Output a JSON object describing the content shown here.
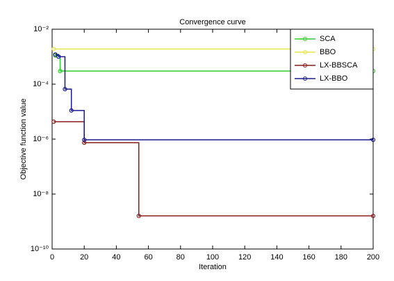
{
  "chart_data": {
    "type": "line",
    "drawstyle": "steps-post",
    "title": "Convergence curve",
    "x_label": "Iteration",
    "y_label": "Objective function value",
    "yscale": "log",
    "grid": false,
    "legend": "upper right",
    "xlim": [
      0,
      200
    ],
    "xticks": [
      0,
      20,
      40,
      60,
      80,
      100,
      120,
      140,
      160,
      180,
      200
    ],
    "ylim": [
      1e-10,
      0.01
    ],
    "yticks": [
      {
        "value": 0.01,
        "label": "10⁻²"
      },
      {
        "value": 0.0001,
        "label": "10⁻⁴"
      },
      {
        "value": 1e-06,
        "label": "10⁻⁶"
      },
      {
        "value": 1e-08,
        "label": "10⁻⁸"
      },
      {
        "value": 1e-10,
        "label": "10⁻¹⁰"
      }
    ],
    "series": [
      {
        "name": "SCA",
        "color": "#2ecc2e",
        "x": [
          2,
          5,
          200
        ],
        "values": [
          0.0011,
          0.0003,
          0.0003
        ]
      },
      {
        "name": "BBO",
        "color": "#e6e64a",
        "x": [
          1,
          200
        ],
        "values": [
          0.0019,
          0.0019
        ]
      },
      {
        "name": "LX-BBSCA",
        "color": "#8b1a1a",
        "x": [
          1,
          20,
          54,
          200
        ],
        "values": [
          4.3e-06,
          7.4e-07,
          1.6e-09,
          1.6e-09
        ]
      },
      {
        "name": "LX-BBO",
        "color": "#1a1a8c",
        "x": [
          2,
          4,
          8,
          12,
          20,
          200
        ],
        "values": [
          0.0012,
          0.001,
          6.6e-05,
          1.1e-05,
          9.4e-07,
          9.4e-07
        ]
      }
    ]
  }
}
